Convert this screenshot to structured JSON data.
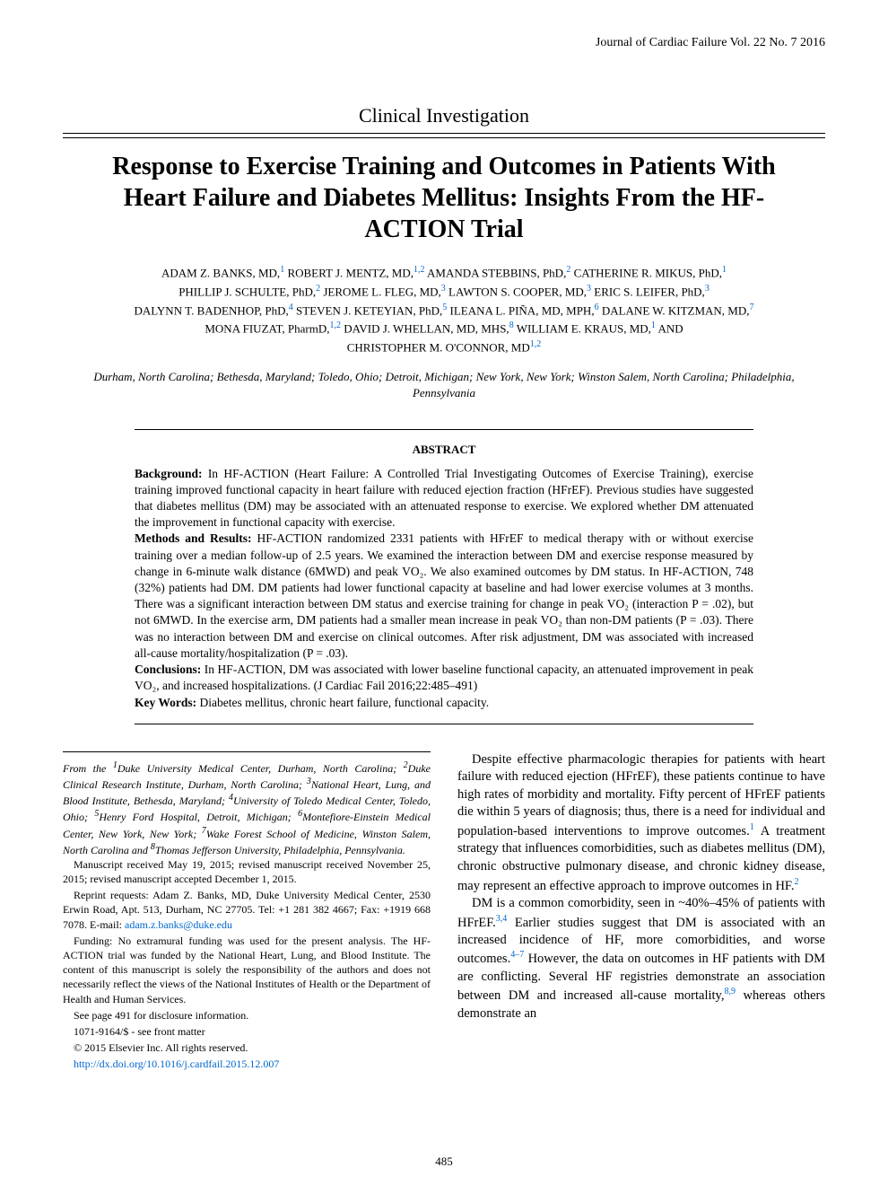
{
  "journal_header": "Journal of Cardiac Failure Vol. 22 No. 7 2016",
  "section_label": "Clinical Investigation",
  "title": "Response to Exercise Training and Outcomes in Patients With Heart Failure and Diabetes Mellitus: Insights From the HF-ACTION Trial",
  "authors_html": "ADAM Z. BANKS, MD,<sup>1</sup> ROBERT J. MENTZ, MD,<sup>1,2</sup> AMANDA STEBBINS, PhD,<sup>2</sup> CATHERINE R. MIKUS, PhD,<sup>1</sup><br>PHILLIP J. SCHULTE, PhD,<sup>2</sup> JEROME L. FLEG, MD,<sup>3</sup> LAWTON S. COOPER, MD,<sup>3</sup> ERIC S. LEIFER, PhD,<sup>3</sup><br>DALYNN T. BADENHOP, PhD,<sup>4</sup> STEVEN J. KETEYIAN, PhD,<sup>5</sup> ILEANA L. PIÑA, MD, MPH,<sup>6</sup> DALANE W. KITZMAN, MD,<sup>7</sup><br>MONA FIUZAT, PharmD,<sup>1,2</sup> DAVID J. WHELLAN, MD, MHS,<sup>8</sup> WILLIAM E. KRAUS, MD,<sup>1</sup> AND<br>CHRISTOPHER M. O'CONNOR, MD<sup>1,2</sup>",
  "locations": "Durham, North Carolina; Bethesda, Maryland; Toledo, Ohio; Detroit, Michigan; New York, New York;\nWinston Salem, North Carolina; Philadelphia, Pennsylvania",
  "abstract": {
    "heading": "ABSTRACT",
    "background_label": "Background:",
    "background_text": " In HF-ACTION (Heart Failure: A Controlled Trial Investigating Outcomes of Exercise Training), exercise training improved functional capacity in heart failure with reduced ejection fraction (HFrEF). Previous studies have suggested that diabetes mellitus (DM) may be associated with an attenuated response to exercise. We explored whether DM attenuated the improvement in functional capacity with exercise.",
    "methods_label": "Methods and Results:",
    "methods_text": " HF-ACTION randomized 2331 patients with HFrEF to medical therapy with or without exercise training over a median follow-up of 2.5 years. We examined the interaction between DM and exercise response measured by change in 6-minute walk distance (6MWD) and peak VO₂. We also examined outcomes by DM status. In HF-ACTION, 748 (32%) patients had DM. DM patients had lower functional capacity at baseline and had lower exercise volumes at 3 months. There was a significant interaction between DM status and exercise training for change in peak VO₂ (interaction P = .02), but not 6MWD. In the exercise arm, DM patients had a smaller mean increase in peak VO₂ than non-DM patients (P = .03). There was no interaction between DM and exercise on clinical outcomes. After risk adjustment, DM was associated with increased all-cause mortality/hospitalization (P = .03).",
    "conclusions_label": "Conclusions:",
    "conclusions_text": " In HF-ACTION, DM was associated with lower baseline functional capacity, an attenuated improvement in peak VO₂, and increased hospitalizations. (J Cardiac Fail 2016;22:485–491)",
    "keywords_label": "Key Words:",
    "keywords_text": " Diabetes mellitus, chronic heart failure, functional capacity."
  },
  "left_col": {
    "affiliations_html": "From the <sup>1</sup>Duke University Medical Center, Durham, North Carolina; <sup>2</sup>Duke Clinical Research Institute, Durham, North Carolina; <sup>3</sup>National Heart, Lung, and Blood Institute, Bethesda, Maryland; <sup>4</sup>University of Toledo Medical Center, Toledo, Ohio; <sup>5</sup>Henry Ford Hospital, Detroit, Michigan; <sup>6</sup>Montefiore-Einstein Medical Center, New York, New York; <sup>7</sup>Wake Forest School of Medicine, Winston Salem, North Carolina and <sup>8</sup>Thomas Jefferson University, Philadelphia, Pennsylvania.",
    "manuscript": "Manuscript received May 19, 2015; revised manuscript received November 25, 2015; revised manuscript accepted December 1, 2015.",
    "reprint_pre": "Reprint requests: Adam Z. Banks, MD, Duke University Medical Center, 2530 Erwin Road, Apt. 513, Durham, NC 27705. Tel: +1 281 382 4667; Fax: +1919 668 7078. E-mail: ",
    "reprint_email": "adam.z.banks@duke.edu",
    "funding": "Funding: No extramural funding was used for the present analysis. The HF-ACTION trial was funded by the National Heart, Lung, and Blood Institute. The content of this manuscript is solely the responsibility of the authors and does not necessarily reflect the views of the National Institutes of Health or the Department of Health and Human Services.",
    "see_page": "See page 491 for disclosure information.",
    "issn": "1071-9164/$ - see front matter",
    "copyright": "© 2015 Elsevier Inc. All rights reserved.",
    "doi": "http://dx.doi.org/10.1016/j.cardfail.2015.12.007"
  },
  "right_col": {
    "para1_html": "Despite effective pharmacologic therapies for patients with heart failure with reduced ejection (HFrEF), these patients continue to have high rates of morbidity and mortality. Fifty percent of HFrEF patients die within 5 years of diagnosis; thus, there is a need for individual and population-based interventions to improve outcomes.<sup class=\"ref\">1</sup> A treatment strategy that influences comorbidities, such as diabetes mellitus (DM), chronic obstructive pulmonary disease, and chronic kidney disease, may represent an effective approach to improve outcomes in HF.<sup class=\"ref\">2</sup>",
    "para2_html": "DM is a common comorbidity, seen in ~40%–45% of patients with HFrEF.<sup class=\"ref\">3,4</sup> Earlier studies suggest that DM is associated with an increased incidence of HF, more comorbidities, and worse outcomes.<sup class=\"ref\">4–7</sup> However, the data on outcomes in HF patients with DM are conflicting. Several HF registries demonstrate an association between DM and increased all-cause mortality,<sup class=\"ref\">8,9</sup> whereas others demonstrate an"
  },
  "page_number": "485",
  "colors": {
    "link": "#0066cc",
    "text": "#000000",
    "background": "#ffffff"
  }
}
